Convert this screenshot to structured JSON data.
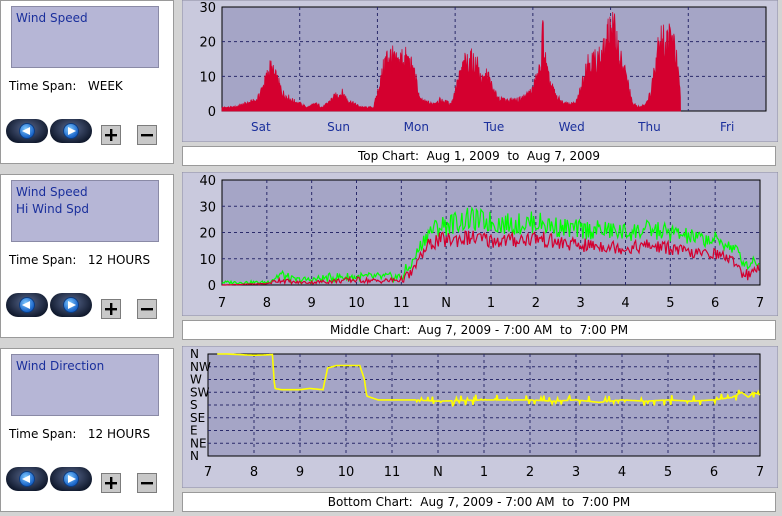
{
  "panels": [
    {
      "series": [
        "Wind Speed"
      ],
      "time_span_label": "Time Span:",
      "time_span_value": "WEEK"
    },
    {
      "series": [
        "Wind Speed",
        "Hi Wind Spd"
      ],
      "time_span_label": "Time Span:",
      "time_span_value": "12 HOURS"
    },
    {
      "series": [
        "Wind Direction"
      ],
      "time_span_label": "Time Span:",
      "time_span_value": "12 HOURS"
    }
  ],
  "captions": {
    "top": "Top Chart:  Aug 1, 2009  to  Aug 7, 2009",
    "middle": "Middle Chart:  Aug 7, 2009 - 7:00 AM  to  7:00 PM",
    "bottom": "Bottom Chart:  Aug 7, 2009 - 7:00 AM  to  7:00 PM"
  },
  "icons": {
    "back": "left-arrow-icon",
    "forward": "right-arrow-icon",
    "zoom_in": "plus-icon",
    "zoom_out": "minus-icon"
  },
  "colors": {
    "plot_bg": "#a5a5c6",
    "frame_bg": "#c9c9dd",
    "grid": "#2a2a6a",
    "wind_speed": "#d4002f",
    "hi_wind_spd": "#00ff00",
    "wind_direction": "#ffff00"
  },
  "chart_data": [
    {
      "id": "top",
      "type": "area",
      "ylim": [
        0,
        30
      ],
      "yticks": [
        0,
        10,
        20,
        30
      ],
      "x_range": [
        0,
        7
      ],
      "categories": [
        "Sat",
        "Sun",
        "Mon",
        "Tue",
        "Wed",
        "Thu",
        "Fri"
      ],
      "series": [
        {
          "name": "Wind Speed",
          "color": "#d4002f",
          "points": [
            [
              0,
              1
            ],
            [
              0.15,
              1
            ],
            [
              0.3,
              2
            ],
            [
              0.45,
              3
            ],
            [
              0.55,
              8
            ],
            [
              0.62,
              12
            ],
            [
              0.7,
              9
            ],
            [
              0.78,
              5
            ],
            [
              0.9,
              3
            ],
            [
              1.0,
              2
            ],
            [
              1.1,
              1
            ],
            [
              1.2,
              2
            ],
            [
              1.3,
              1
            ],
            [
              1.45,
              4
            ],
            [
              1.55,
              5
            ],
            [
              1.62,
              3
            ],
            [
              1.7,
              2
            ],
            [
              1.8,
              1
            ],
            [
              1.95,
              1
            ],
            [
              2.05,
              9
            ],
            [
              2.1,
              14
            ],
            [
              2.15,
              16
            ],
            [
              2.25,
              13
            ],
            [
              2.32,
              15
            ],
            [
              2.4,
              14
            ],
            [
              2.48,
              10
            ],
            [
              2.55,
              3
            ],
            [
              2.7,
              2
            ],
            [
              2.8,
              3
            ],
            [
              2.95,
              2
            ],
            [
              3.05,
              9
            ],
            [
              3.12,
              13
            ],
            [
              3.2,
              14
            ],
            [
              3.28,
              13
            ],
            [
              3.35,
              8
            ],
            [
              3.42,
              10
            ],
            [
              3.5,
              5
            ],
            [
              3.6,
              3
            ],
            [
              3.7,
              3
            ],
            [
              3.8,
              3
            ],
            [
              3.9,
              4
            ],
            [
              4.0,
              6
            ],
            [
              4.05,
              9
            ],
            [
              4.1,
              12
            ],
            [
              4.13,
              23
            ],
            [
              4.16,
              14
            ],
            [
              4.2,
              9
            ],
            [
              4.3,
              4
            ],
            [
              4.4,
              2
            ],
            [
              4.55,
              2
            ],
            [
              4.6,
              5
            ],
            [
              4.7,
              14
            ],
            [
              4.8,
              14
            ],
            [
              4.87,
              15
            ],
            [
              4.93,
              17
            ],
            [
              5.0,
              24
            ],
            [
              5.07,
              21
            ],
            [
              5.13,
              14
            ],
            [
              5.2,
              10
            ],
            [
              5.28,
              2
            ],
            [
              5.38,
              1
            ],
            [
              5.45,
              2
            ],
            [
              5.52,
              5
            ],
            [
              5.57,
              13
            ],
            [
              5.62,
              21
            ],
            [
              5.7,
              19
            ],
            [
              5.78,
              21
            ],
            [
              5.84,
              16
            ],
            [
              5.9,
              4
            ]
          ]
        }
      ]
    },
    {
      "id": "middle",
      "type": "line",
      "ylim": [
        0,
        40
      ],
      "yticks": [
        0,
        10,
        20,
        30,
        40
      ],
      "x_range": [
        0,
        12
      ],
      "xticks": [
        "7",
        "8",
        "9",
        "10",
        "11",
        "N",
        "1",
        "2",
        "3",
        "4",
        "5",
        "6",
        "7"
      ],
      "series": [
        {
          "name": "Wind Speed",
          "color": "#d4002f",
          "points": [
            [
              0,
              0
            ],
            [
              1,
              0.5
            ],
            [
              1.3,
              2
            ],
            [
              1.6,
              1
            ],
            [
              2,
              1
            ],
            [
              2.5,
              1.5
            ],
            [
              3,
              2
            ],
            [
              3.5,
              1.5
            ],
            [
              4,
              2
            ],
            [
              4.2,
              4
            ],
            [
              4.4,
              10
            ],
            [
              4.6,
              15
            ],
            [
              4.8,
              17
            ],
            [
              5,
              17
            ],
            [
              5.5,
              18
            ],
            [
              6,
              17
            ],
            [
              6.5,
              17
            ],
            [
              7,
              18
            ],
            [
              7.5,
              16
            ],
            [
              8,
              15
            ],
            [
              8.5,
              15
            ],
            [
              9,
              14
            ],
            [
              9.5,
              15
            ],
            [
              10,
              14
            ],
            [
              10.5,
              12
            ],
            [
              11,
              12
            ],
            [
              11.2,
              11
            ],
            [
              11.5,
              8
            ],
            [
              11.6,
              5
            ],
            [
              11.75,
              4
            ],
            [
              11.85,
              6
            ],
            [
              11.95,
              5
            ],
            [
              12,
              4
            ]
          ]
        },
        {
          "name": "Hi Wind Spd",
          "color": "#00ff00",
          "points": [
            [
              0,
              1
            ],
            [
              1,
              1
            ],
            [
              1.3,
              4
            ],
            [
              1.6,
              2
            ],
            [
              2,
              2
            ],
            [
              2.5,
              3
            ],
            [
              3,
              3
            ],
            [
              3.5,
              3
            ],
            [
              4,
              3
            ],
            [
              4.2,
              7
            ],
            [
              4.4,
              14
            ],
            [
              4.6,
              20
            ],
            [
              4.8,
              22
            ],
            [
              5,
              23
            ],
            [
              5.5,
              25
            ],
            [
              6,
              24
            ],
            [
              6.5,
              23
            ],
            [
              7,
              24
            ],
            [
              7.5,
              22
            ],
            [
              8,
              21
            ],
            [
              8.5,
              21
            ],
            [
              9,
              20
            ],
            [
              9.5,
              21
            ],
            [
              10,
              20
            ],
            [
              10.5,
              18
            ],
            [
              11,
              17
            ],
            [
              11.2,
              16
            ],
            [
              11.5,
              13
            ],
            [
              11.6,
              9
            ],
            [
              11.75,
              7
            ],
            [
              11.85,
              10
            ],
            [
              11.95,
              8
            ],
            [
              12,
              7
            ]
          ]
        }
      ]
    },
    {
      "id": "bottom",
      "type": "line",
      "y_categories": [
        "N",
        "NW",
        "W",
        "SW",
        "S",
        "SE",
        "E",
        "NE",
        "N"
      ],
      "x_range": [
        0,
        12
      ],
      "xticks": [
        "7",
        "8",
        "9",
        "10",
        "11",
        "N",
        "1",
        "2",
        "3",
        "4",
        "5",
        "6",
        "7"
      ],
      "series": [
        {
          "name": "Wind Direction",
          "color": "#ffff00",
          "points": [
            [
              0.2,
              0
            ],
            [
              0.4,
              0
            ],
            [
              1.0,
              0.1
            ],
            [
              1.4,
              0.05
            ],
            [
              1.45,
              2.7
            ],
            [
              1.6,
              2.8
            ],
            [
              2.0,
              2.8
            ],
            [
              2.2,
              2.7
            ],
            [
              2.5,
              2.8
            ],
            [
              2.6,
              1.1
            ],
            [
              2.8,
              0.9
            ],
            [
              3.3,
              0.9
            ],
            [
              3.4,
              2.0
            ],
            [
              3.45,
              3.3
            ],
            [
              3.7,
              3.6
            ],
            [
              4.5,
              3.6
            ],
            [
              5.0,
              3.7
            ],
            [
              6.0,
              3.6
            ],
            [
              7.0,
              3.6
            ],
            [
              7.5,
              3.7
            ],
            [
              8.0,
              3.6
            ],
            [
              8.5,
              3.8
            ],
            [
              9.0,
              3.6
            ],
            [
              9.5,
              3.7
            ],
            [
              10.0,
              3.6
            ],
            [
              10.5,
              3.7
            ],
            [
              11.0,
              3.6
            ],
            [
              11.4,
              3.4
            ],
            [
              11.6,
              3.0
            ],
            [
              11.75,
              3.4
            ],
            [
              11.85,
              3.0
            ],
            [
              12,
              3.2
            ]
          ]
        }
      ]
    }
  ]
}
